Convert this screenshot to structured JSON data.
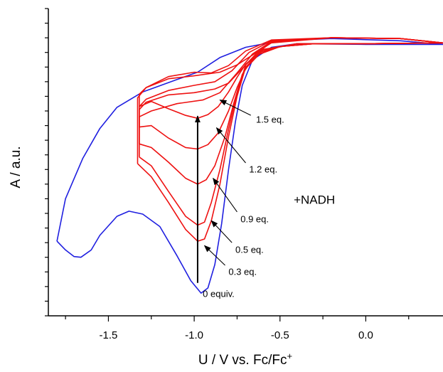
{
  "chart_data": {
    "type": "line",
    "title": "",
    "xlabel": "U / V vs. Fc/Fc",
    "xlabel_sup": "+",
    "ylabel": "A / a.u.",
    "xlim": [
      -1.85,
      0.45
    ],
    "ylim": [
      0,
      42
    ],
    "x_ticks": [
      -1.5,
      -1.0,
      -0.5,
      0.0
    ],
    "x_tick_labels": [
      "-1.5",
      "-1.0",
      "-0.5",
      "0.0"
    ],
    "y_tick_labels_shown": false,
    "colors": {
      "blank": "#1f1fe0",
      "nadh": "#ee1111",
      "arrow": "#000000"
    },
    "series": [
      {
        "name": "0 equiv.",
        "color": "#1f1fe0",
        "points": [
          [
            -1.8,
            10.2
          ],
          [
            -1.75,
            9.0
          ],
          [
            -1.7,
            8.1
          ],
          [
            -1.66,
            8.0
          ],
          [
            -1.6,
            9.0
          ],
          [
            -1.55,
            11.0
          ],
          [
            -1.45,
            13.6
          ],
          [
            -1.38,
            14.3
          ],
          [
            -1.3,
            13.9
          ],
          [
            -1.2,
            12.2
          ],
          [
            -1.1,
            8.2
          ],
          [
            -1.02,
            4.8
          ],
          [
            -0.96,
            3.1
          ],
          [
            -0.92,
            3.8
          ],
          [
            -0.88,
            7.0
          ],
          [
            -0.84,
            12.6
          ],
          [
            -0.8,
            20.0
          ],
          [
            -0.76,
            26.5
          ],
          [
            -0.72,
            31.5
          ],
          [
            -0.66,
            35.0
          ],
          [
            -0.55,
            36.7
          ],
          [
            -0.4,
            37.2
          ],
          [
            0.0,
            37.1
          ],
          [
            0.45,
            37.1
          ],
          [
            0.2,
            37.6
          ],
          [
            -0.2,
            37.9
          ],
          [
            -0.5,
            37.6
          ],
          [
            -0.7,
            36.7
          ],
          [
            -0.85,
            35.3
          ],
          [
            -0.98,
            33.3
          ],
          [
            -1.1,
            32.3
          ],
          [
            -1.3,
            30.6
          ],
          [
            -1.45,
            28.5
          ],
          [
            -1.55,
            25.6
          ],
          [
            -1.65,
            21.5
          ],
          [
            -1.75,
            16.0
          ],
          [
            -1.8,
            10.2
          ]
        ]
      },
      {
        "name": "0.3 eq.",
        "color": "#ee1111",
        "points": [
          [
            -1.33,
            20.8
          ],
          [
            -1.25,
            19.0
          ],
          [
            -1.15,
            15.5
          ],
          [
            -1.05,
            11.8
          ],
          [
            -0.98,
            10.2
          ],
          [
            -0.94,
            10.5
          ],
          [
            -0.9,
            13.0
          ],
          [
            -0.85,
            18.0
          ],
          [
            -0.8,
            24.5
          ],
          [
            -0.75,
            30.0
          ],
          [
            -0.7,
            34.0
          ],
          [
            -0.6,
            36.3
          ],
          [
            -0.4,
            37.2
          ],
          [
            0.0,
            37.2
          ],
          [
            0.45,
            37.3
          ],
          [
            0.2,
            37.9
          ],
          [
            -0.2,
            38.0
          ],
          [
            -0.55,
            37.7
          ],
          [
            -0.7,
            36.2
          ],
          [
            -0.8,
            34.2
          ],
          [
            -0.9,
            33.2
          ],
          [
            -1.0,
            33.3
          ],
          [
            -1.15,
            32.7
          ],
          [
            -1.28,
            31.2
          ],
          [
            -1.33,
            29.8
          ],
          [
            -1.33,
            20.8
          ]
        ]
      },
      {
        "name": "0.5 eq.",
        "color": "#ee1111",
        "points": [
          [
            -1.32,
            21.7
          ],
          [
            -1.25,
            20.5
          ],
          [
            -1.15,
            17.0
          ],
          [
            -1.05,
            13.6
          ],
          [
            -0.98,
            12.4
          ],
          [
            -0.94,
            12.8
          ],
          [
            -0.9,
            15.5
          ],
          [
            -0.85,
            20.0
          ],
          [
            -0.8,
            25.5
          ],
          [
            -0.75,
            30.5
          ],
          [
            -0.7,
            34.3
          ],
          [
            -0.6,
            36.4
          ],
          [
            -0.4,
            37.2
          ],
          [
            0.0,
            37.2
          ],
          [
            0.45,
            37.3
          ],
          [
            0.2,
            37.9
          ],
          [
            -0.2,
            38.0
          ],
          [
            -0.55,
            37.6
          ],
          [
            -0.68,
            36.0
          ],
          [
            -0.78,
            33.5
          ],
          [
            -0.88,
            32.0
          ],
          [
            -1.0,
            31.5
          ],
          [
            -1.15,
            30.8
          ],
          [
            -1.28,
            29.6
          ],
          [
            -1.32,
            28.6
          ],
          [
            -1.32,
            21.7
          ]
        ]
      },
      {
        "name": "0.9 eq.",
        "color": "#ee1111",
        "points": [
          [
            -1.32,
            23.5
          ],
          [
            -1.25,
            23.0
          ],
          [
            -1.15,
            21.0
          ],
          [
            -1.05,
            18.8
          ],
          [
            -0.98,
            18.0
          ],
          [
            -0.93,
            18.6
          ],
          [
            -0.88,
            20.5
          ],
          [
            -0.82,
            24.5
          ],
          [
            -0.77,
            29.0
          ],
          [
            -0.72,
            33.0
          ],
          [
            -0.65,
            35.5
          ],
          [
            -0.5,
            36.8
          ],
          [
            -0.3,
            37.2
          ],
          [
            0.0,
            37.2
          ],
          [
            0.45,
            37.3
          ],
          [
            0.2,
            37.9
          ],
          [
            -0.2,
            38.0
          ],
          [
            -0.55,
            37.5
          ],
          [
            -0.66,
            35.8
          ],
          [
            -0.75,
            33.2
          ],
          [
            -0.85,
            30.5
          ],
          [
            -0.95,
            29.5
          ],
          [
            -1.1,
            29.0
          ],
          [
            -1.25,
            28.0
          ],
          [
            -1.32,
            27.2
          ],
          [
            -1.32,
            23.5
          ]
        ]
      },
      {
        "name": "1.2 eq.",
        "color": "#ee1111",
        "points": [
          [
            -1.32,
            25.8
          ],
          [
            -1.25,
            26.0
          ],
          [
            -1.15,
            24.3
          ],
          [
            -1.05,
            23.0
          ],
          [
            -0.98,
            22.8
          ],
          [
            -0.92,
            23.4
          ],
          [
            -0.86,
            25.0
          ],
          [
            -0.8,
            28.0
          ],
          [
            -0.75,
            31.2
          ],
          [
            -0.7,
            33.8
          ],
          [
            -0.62,
            35.8
          ],
          [
            -0.5,
            36.8
          ],
          [
            -0.3,
            37.2
          ],
          [
            0.0,
            37.2
          ],
          [
            0.45,
            37.3
          ],
          [
            0.2,
            37.9
          ],
          [
            -0.2,
            38.0
          ],
          [
            -0.55,
            37.4
          ],
          [
            -0.64,
            35.8
          ],
          [
            -0.72,
            33.8
          ],
          [
            -0.8,
            31.8
          ],
          [
            -0.88,
            31.0
          ],
          [
            -1.0,
            30.5
          ],
          [
            -1.15,
            30.2
          ],
          [
            -1.28,
            29.2
          ],
          [
            -1.32,
            28.2
          ],
          [
            -1.32,
            25.8
          ]
        ]
      },
      {
        "name": "1.5 eq.",
        "color": "#ee1111",
        "points": [
          [
            -1.32,
            28.6
          ],
          [
            -1.25,
            29.3
          ],
          [
            -1.15,
            28.3
          ],
          [
            -1.05,
            27.4
          ],
          [
            -0.98,
            27.0
          ],
          [
            -0.92,
            27.5
          ],
          [
            -0.86,
            28.6
          ],
          [
            -0.8,
            30.6
          ],
          [
            -0.75,
            32.6
          ],
          [
            -0.7,
            34.4
          ],
          [
            -0.62,
            36.0
          ],
          [
            -0.5,
            36.8
          ],
          [
            -0.3,
            37.2
          ],
          [
            0.0,
            37.2
          ],
          [
            0.45,
            37.3
          ],
          [
            0.2,
            37.9
          ],
          [
            -0.2,
            38.0
          ],
          [
            -0.55,
            37.3
          ],
          [
            -0.65,
            35.8
          ],
          [
            -0.75,
            34.3
          ],
          [
            -0.85,
            33.3
          ],
          [
            -1.0,
            32.8
          ],
          [
            -1.15,
            32.4
          ],
          [
            -1.28,
            31.2
          ],
          [
            -1.32,
            30.3
          ],
          [
            -1.32,
            28.6
          ]
        ]
      }
    ],
    "trend_arrow": {
      "from": [
        -0.98,
        4.5
      ],
      "to": [
        -0.98,
        27.3
      ]
    },
    "annotations": [
      {
        "text": "0 equiv.",
        "label_at": [
          -0.95,
          2.6
        ]
      },
      {
        "text": "0.3 eq.",
        "label_at": [
          -0.8,
          5.6
        ],
        "arrow_from": [
          -0.82,
          6.9
        ],
        "arrow_to": [
          -0.94,
          9.6
        ]
      },
      {
        "text": "0.5 eq.",
        "label_at": [
          -0.76,
          8.6
        ],
        "arrow_from": [
          -0.78,
          10.0
        ],
        "arrow_to": [
          -0.9,
          13.0
        ]
      },
      {
        "text": "0.9 eq.",
        "label_at": [
          -0.73,
          12.8
        ],
        "arrow_from": [
          -0.75,
          14.2
        ],
        "arrow_to": [
          -0.89,
          18.8
        ]
      },
      {
        "text": "1.2 eq.",
        "label_at": [
          -0.68,
          19.6
        ],
        "arrow_from": [
          -0.7,
          20.9
        ],
        "arrow_to": [
          -0.87,
          25.7
        ]
      },
      {
        "text": "1.5 eq.",
        "label_at": [
          -0.64,
          26.4
        ],
        "arrow_from": [
          -0.67,
          27.4
        ],
        "arrow_to": [
          -0.85,
          29.5
        ]
      }
    ],
    "label": {
      "text": "+NADH",
      "label_at": [
        -0.42,
        15.3
      ]
    }
  }
}
